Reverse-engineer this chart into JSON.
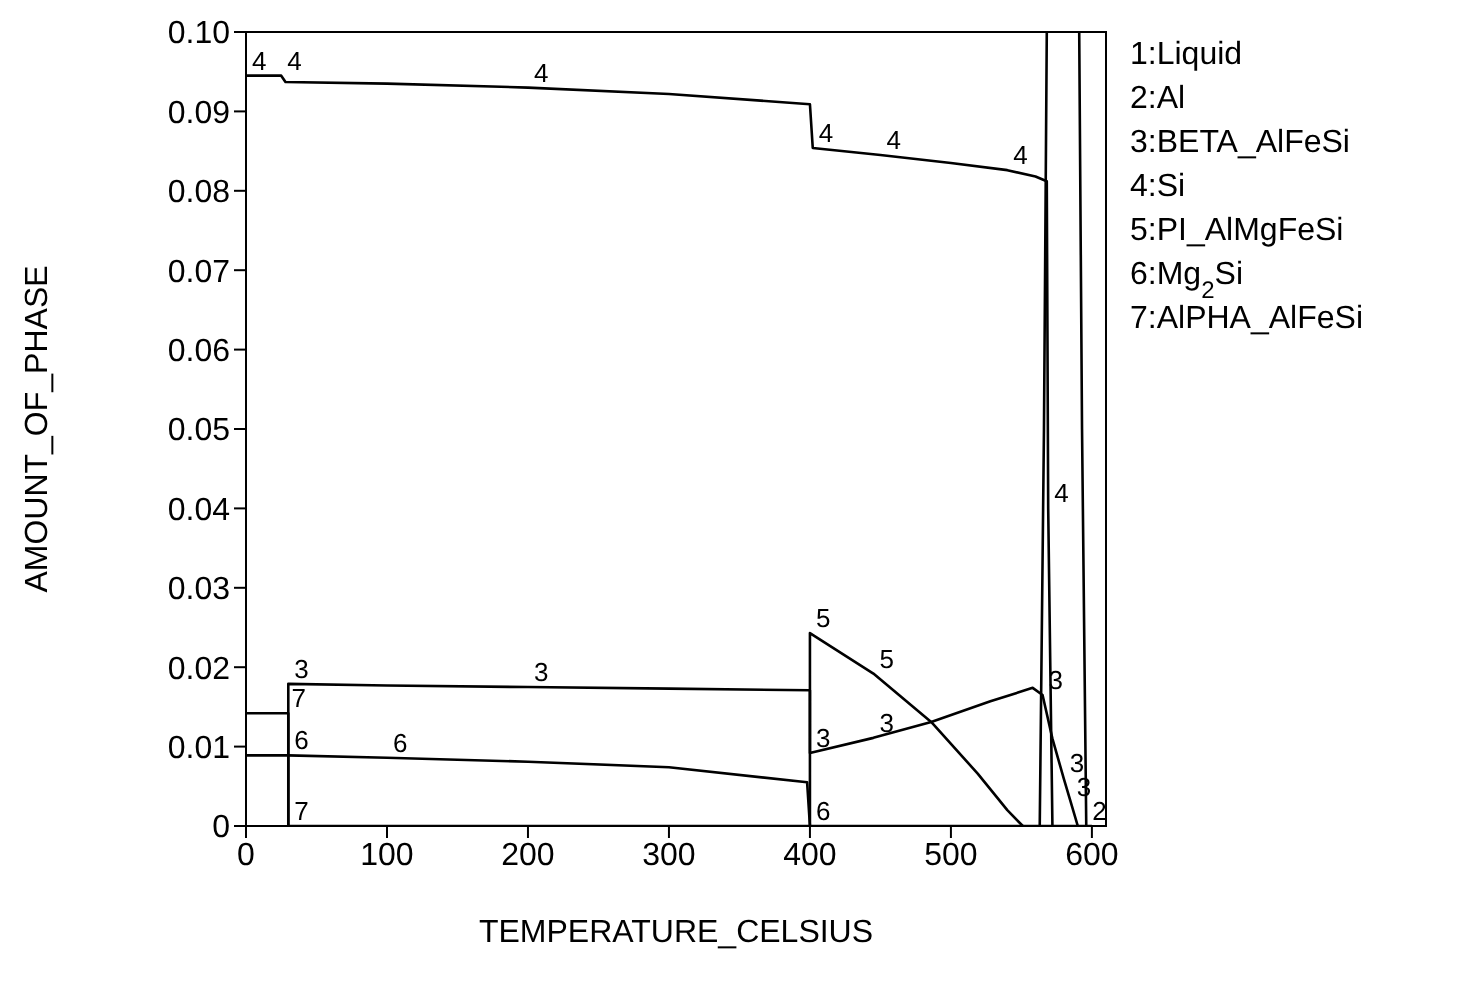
{
  "chart_data": {
    "type": "line",
    "xlabel": "TEMPERATURE_CELSIUS",
    "ylabel": "AMOUNT_OF_PHASE",
    "xlim": [
      0,
      610
    ],
    "xticks": [
      0,
      100,
      200,
      300,
      400,
      500,
      600
    ],
    "ylim": [
      0,
      0.1
    ],
    "yticks": [
      0,
      0.01,
      0.02,
      0.03,
      0.04,
      0.05,
      0.06,
      0.07,
      0.08,
      0.09,
      {
        "value": 0.1,
        "label": "0.10"
      }
    ],
    "marker": "none",
    "line_style": "solid",
    "series": [
      {
        "color": "#000000",
        "x": [
          563,
          566,
          568
        ],
        "values": [
          0,
          0.05,
          0.1
        ]
      },
      {
        "color": "#000000",
        "x": [
          591,
          593,
          596
        ],
        "values": [
          0.1,
          0.05,
          0
        ]
      },
      {
        "color": "#000000",
        "x": [
          30,
          30,
          100,
          200,
          300,
          400,
          400,
          445,
          486,
          528,
          558,
          565,
          572,
          580,
          585,
          590
        ],
        "values": [
          0,
          0.0179,
          0.0177,
          0.0175,
          0.0173,
          0.0171,
          0.0092,
          0.0111,
          0.0131,
          0.0157,
          0.0174,
          0.0165,
          0.011,
          0.006,
          0.003,
          0
        ]
      },
      {
        "color": "#000000",
        "x": [
          0,
          25,
          28,
          100,
          200,
          300,
          400,
          402,
          450,
          500,
          540,
          560,
          568,
          569,
          572
        ],
        "values": [
          0.0945,
          0.0945,
          0.0937,
          0.0935,
          0.093,
          0.0922,
          0.0909,
          0.0854,
          0.0845,
          0.0835,
          0.0826,
          0.0818,
          0.0812,
          0.04,
          0
        ]
      },
      {
        "color": "#000000",
        "x": [
          400,
          400,
          445,
          486,
          519,
          540,
          551
        ],
        "values": [
          0,
          0.0243,
          0.0192,
          0.0131,
          0.0066,
          0.002,
          0
        ]
      },
      {
        "color": "#000000",
        "x": [
          0,
          30,
          100,
          200,
          300,
          398,
          400,
          600
        ],
        "values": [
          0.0089,
          0.0089,
          0.0086,
          0.0081,
          0.0074,
          0.0055,
          0,
          0
        ]
      },
      {
        "color": "#000000",
        "x": [
          0,
          28,
          30,
          30,
          400
        ],
        "values": [
          0.0142,
          0.0142,
          0.0142,
          0,
          0
        ]
      }
    ],
    "annotations": [
      "1:Liquid",
      "2:Al",
      "3:BETA_AlFeSi",
      "4:Si",
      "5:PI_AlMgFeSi",
      "6:Mg$_{2}$Si",
      "7:AlPHA_AlFeSi",
      {
        "text": "4",
        "x": 0,
        "y": 0.0945
      },
      {
        "text": "4",
        "x": 25,
        "y": 0.0945
      },
      {
        "text": "4",
        "x": 200,
        "y": 0.093
      },
      {
        "text": "4",
        "x": 402,
        "y": 0.0854
      },
      {
        "text": "4",
        "x": 450,
        "y": 0.0845
      },
      {
        "text": "4",
        "x": 540,
        "y": 0.0826
      },
      {
        "text": "4",
        "x": 569,
        "y": 0.04
      },
      {
        "text": "3",
        "x": 30,
        "y": 0.0179
      },
      {
        "text": "3",
        "x": 200,
        "y": 0.0175
      },
      {
        "text": "3",
        "x": 400,
        "y": 0.0092
      },
      {
        "text": "3",
        "x": 445,
        "y": 0.0111
      },
      {
        "text": "3",
        "x": 565,
        "y": 0.0165
      },
      {
        "text": "3",
        "x": 580,
        "y": 0.006
      },
      {
        "text": "3",
        "x": 585,
        "y": 0.003
      },
      {
        "text": "5",
        "x": 400,
        "y": 0.0243
      },
      {
        "text": "5",
        "x": 445,
        "y": 0.0192
      },
      {
        "text": "6",
        "x": 30,
        "y": 0.0089
      },
      {
        "text": "6",
        "x": 100,
        "y": 0.0086
      },
      {
        "text": "6",
        "x": 400,
        "y": 0
      },
      {
        "text": "7",
        "x": 28,
        "y": 0.0142
      },
      {
        "text": "7",
        "x": 30,
        "y": 0
      },
      {
        "text": "2",
        "x": 596,
        "y": 0
      }
    ]
  }
}
